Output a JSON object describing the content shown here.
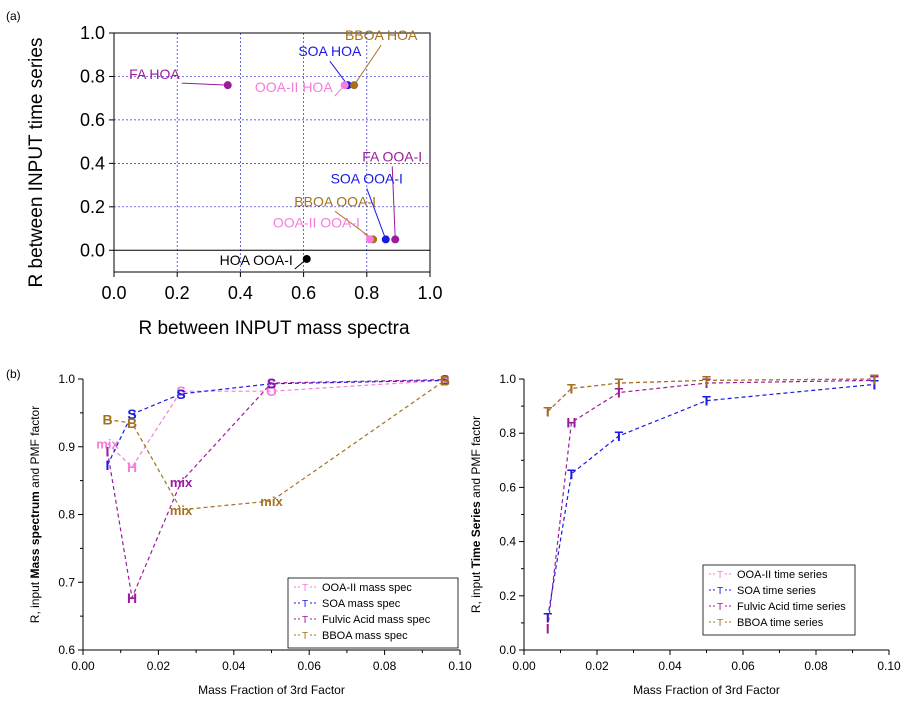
{
  "colors": {
    "ooa2": "#f57ddc",
    "soa": "#1a1ae6",
    "fa": "#9b1c9b",
    "bboa": "#a5711e",
    "hoa": "#000000",
    "grid": "#2a2ad0"
  },
  "chart_data": [
    {
      "panel_label": "(a)",
      "type": "scatter",
      "xlabel": "R between INPUT mass spectra",
      "ylabel": "R between INPUT time series",
      "xlim": [
        0,
        1.0
      ],
      "ylim": [
        -0.1,
        1.0
      ],
      "xticks": [
        "0.0",
        "0.2",
        "0.4",
        "0.6",
        "0.8",
        "1.0"
      ],
      "yticks": [
        "0.0",
        "0.2",
        "0.4",
        "0.6",
        "0.8",
        "1.0"
      ],
      "grid": true,
      "points": [
        {
          "name": "FA HOA",
          "x": 0.36,
          "y": 0.76,
          "color": "fa"
        },
        {
          "name": "SOA HOA",
          "x": 0.74,
          "y": 0.76,
          "color": "soa"
        },
        {
          "name": "BBOA HOA",
          "x": 0.76,
          "y": 0.76,
          "color": "bboa"
        },
        {
          "name": "OOA-II HOA",
          "x": 0.73,
          "y": 0.76,
          "color": "ooa2"
        },
        {
          "name": "FA OOA-I",
          "x": 0.89,
          "y": 0.05,
          "color": "fa"
        },
        {
          "name": "SOA OOA-I",
          "x": 0.86,
          "y": 0.05,
          "color": "soa"
        },
        {
          "name": "BBOA OOA-I",
          "x": 0.82,
          "y": 0.05,
          "color": "bboa"
        },
        {
          "name": "OOA-II OOA-I",
          "x": 0.81,
          "y": 0.05,
          "color": "ooa2"
        },
        {
          "name": "HOA OOA-I",
          "x": 0.61,
          "y": -0.04,
          "color": "hoa"
        }
      ]
    },
    {
      "panel_label": "(b)",
      "type": "line",
      "xlabel": "Mass Fraction of 3rd Factor",
      "ylabel_parts": [
        "R, input ",
        "Mass spectrum",
        " and PMF factor"
      ],
      "xlim": [
        0,
        0.1
      ],
      "ylim": [
        0.6,
        1.0
      ],
      "xticks": [
        "0.00",
        "0.02",
        "0.04",
        "0.06",
        "0.08",
        "0.10"
      ],
      "yticks": [
        "0.6",
        "0.7",
        "0.8",
        "0.9",
        "1.0"
      ],
      "series": [
        {
          "name": "OOA-II mass spec",
          "color": "ooa2",
          "x": [
            0.0065,
            0.013,
            0.026,
            0.05,
            0.096
          ],
          "y": [
            0.905,
            0.87,
            0.982,
            0.982,
            0.998
          ],
          "markers": [
            "mix",
            "H",
            "S",
            "O",
            "I"
          ]
        },
        {
          "name": "SOA mass spec",
          "color": "soa",
          "x": [
            0.0065,
            0.013,
            0.026,
            0.05,
            0.096
          ],
          "y": [
            0.873,
            0.948,
            0.978,
            0.993,
            0.998
          ],
          "markers": [
            "I",
            "S",
            "S",
            "S",
            "S"
          ]
        },
        {
          "name": "Fulvic Acid mass spec",
          "color": "fa",
          "x": [
            0.0065,
            0.013,
            0.026,
            0.05,
            0.096
          ],
          "y": [
            0.893,
            0.677,
            0.848,
            0.994,
            0.999
          ],
          "markers": [
            "I",
            "H",
            "mix",
            "S",
            "S"
          ]
        },
        {
          "name": "BBOA mass spec",
          "color": "bboa",
          "x": [
            0.0065,
            0.013,
            0.026,
            0.05,
            0.096
          ],
          "y": [
            0.94,
            0.935,
            0.807,
            0.82,
            0.998
          ],
          "markers": [
            "B",
            "B",
            "mix",
            "mix",
            "B"
          ]
        }
      ]
    },
    {
      "type": "line",
      "xlabel": "Mass Fraction of 3rd Factor",
      "ylabel_parts": [
        "R, input ",
        "Time Series",
        " and PMF factor"
      ],
      "xlim": [
        0,
        0.1
      ],
      "ylim": [
        0,
        1.0
      ],
      "xticks": [
        "0.00",
        "0.02",
        "0.04",
        "0.06",
        "0.08",
        "0.10"
      ],
      "yticks": [
        "0.0",
        "0.2",
        "0.4",
        "0.6",
        "0.8",
        "1.0"
      ],
      "series": [
        {
          "name": "OOA-II time series",
          "color": "ooa2",
          "x": [
            0.0065,
            0.013,
            0.026,
            0.05,
            0.096
          ],
          "y": [
            0.88,
            0.965,
            0.985,
            0.995,
            1.0
          ],
          "markers": [
            "T",
            "T",
            "T",
            "T",
            "T"
          ]
        },
        {
          "name": "SOA time series",
          "color": "soa",
          "x": [
            0.0065,
            0.013,
            0.026,
            0.05,
            0.096
          ],
          "y": [
            0.12,
            0.65,
            0.79,
            0.92,
            0.98
          ],
          "markers": [
            "T",
            "T",
            "T",
            "T",
            "T"
          ]
        },
        {
          "name": "Fulvic Acid time series",
          "color": "fa",
          "x": [
            0.0065,
            0.013,
            0.026,
            0.05,
            0.096
          ],
          "y": [
            0.08,
            0.84,
            0.95,
            0.985,
            0.995
          ],
          "markers": [
            "I",
            "H",
            "T",
            "T",
            "T"
          ]
        },
        {
          "name": "BBOA time series",
          "color": "bboa",
          "x": [
            0.0065,
            0.013,
            0.026,
            0.05,
            0.096
          ],
          "y": [
            0.88,
            0.965,
            0.985,
            0.995,
            1.0
          ],
          "markers": [
            "T",
            "T",
            "T",
            "T",
            "T"
          ]
        }
      ]
    }
  ]
}
